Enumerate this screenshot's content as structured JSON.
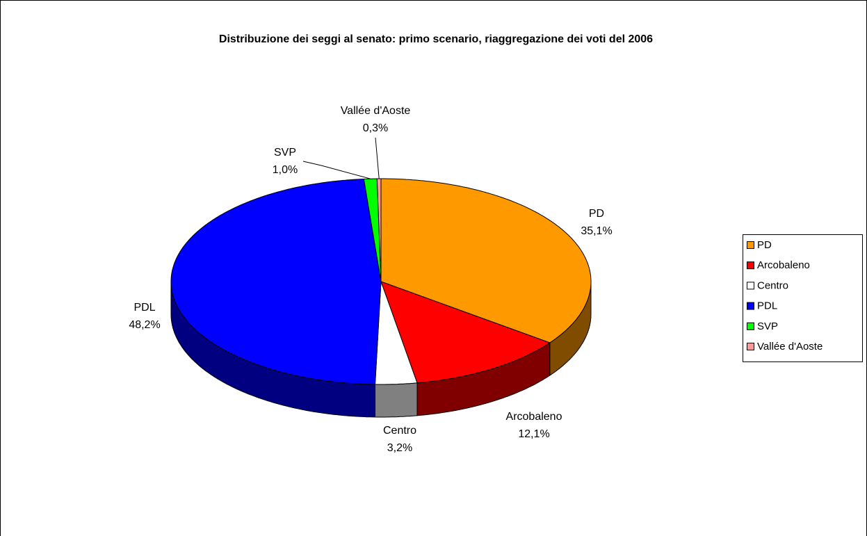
{
  "chart_data": {
    "type": "pie3d",
    "title": "Distribuzione dei seggi al senato: primo scenario, riaggregazione dei voti del 2006",
    "categories": [
      "PD",
      "Arcobaleno",
      "Centro",
      "PDL",
      "SVP",
      "Vallée d'Aoste"
    ],
    "values": [
      35.1,
      12.1,
      3.2,
      48.2,
      1.0,
      0.3
    ],
    "value_labels": [
      "35,1%",
      "12,1%",
      "3,2%",
      "48,2%",
      "1,0%",
      "0,3%"
    ],
    "colors": [
      "#ff9900",
      "#ff0000",
      "#ffffff",
      "#0000ff",
      "#00ff00",
      "#ff9999"
    ],
    "legend": "right"
  }
}
